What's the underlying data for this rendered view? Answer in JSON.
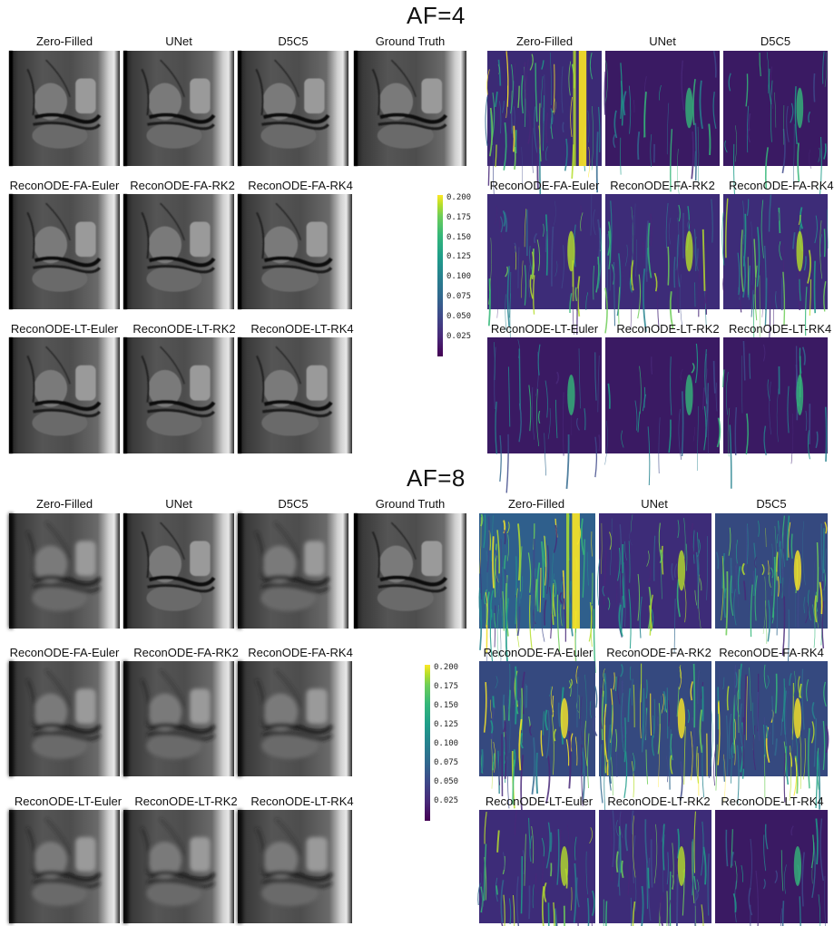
{
  "af4": {
    "title": "AF=4",
    "mri_row1": [
      "Zero-Filled",
      "UNet",
      "D5C5",
      "Ground Truth"
    ],
    "mri_row2": [
      "ReconODE-FA-Euler",
      "ReconODE-FA-RK2",
      "ReconODE-FA-RK4"
    ],
    "mri_row3": [
      "ReconODE-LT-Euler",
      "ReconODE-LT-RK2",
      "ReconODE-LT-RK4"
    ],
    "err_row1": [
      "Zero-Filled",
      "UNet",
      "D5C5"
    ],
    "err_row2": [
      "ReconODE-FA-Euler",
      "ReconODE-FA-RK2",
      "ReconODE-FA-RK4"
    ],
    "err_row3": [
      "ReconODE-LT-Euler",
      "ReconODE-LT-RK2",
      "ReconODE-LT-RK4"
    ],
    "colorbar_ticks": [
      "0.200",
      "0.175",
      "0.150",
      "0.125",
      "0.100",
      "0.075",
      "0.050",
      "0.025"
    ]
  },
  "af8": {
    "title": "AF=8",
    "mri_row1": [
      "Zero-Filled",
      "UNet",
      "D5C5",
      "Ground Truth"
    ],
    "mri_row2": [
      "ReconODE-FA-Euler",
      "ReconODE-FA-RK2",
      "ReconODE-FA-RK4"
    ],
    "mri_row3": [
      "ReconODE-LT-Euler",
      "ReconODE-LT-RK2",
      "ReconODE-LT-RK4"
    ],
    "err_row1": [
      "Zero-Filled",
      "UNet",
      "D5C5"
    ],
    "err_row2": [
      "ReconODE-FA-Euler",
      "ReconODE-FA-RK2",
      "ReconODE-FA-RK4"
    ],
    "err_row3": [
      "ReconODE-LT-Euler",
      "ReconODE-LT-RK2",
      "ReconODE-LT-RK4"
    ],
    "colorbar_ticks": [
      "0.200",
      "0.175",
      "0.150",
      "0.125",
      "0.100",
      "0.075",
      "0.050",
      "0.025"
    ]
  },
  "colors": {
    "viridis_dark": "#440154",
    "viridis_mid": "#21918c",
    "viridis_bright": "#fde725"
  }
}
